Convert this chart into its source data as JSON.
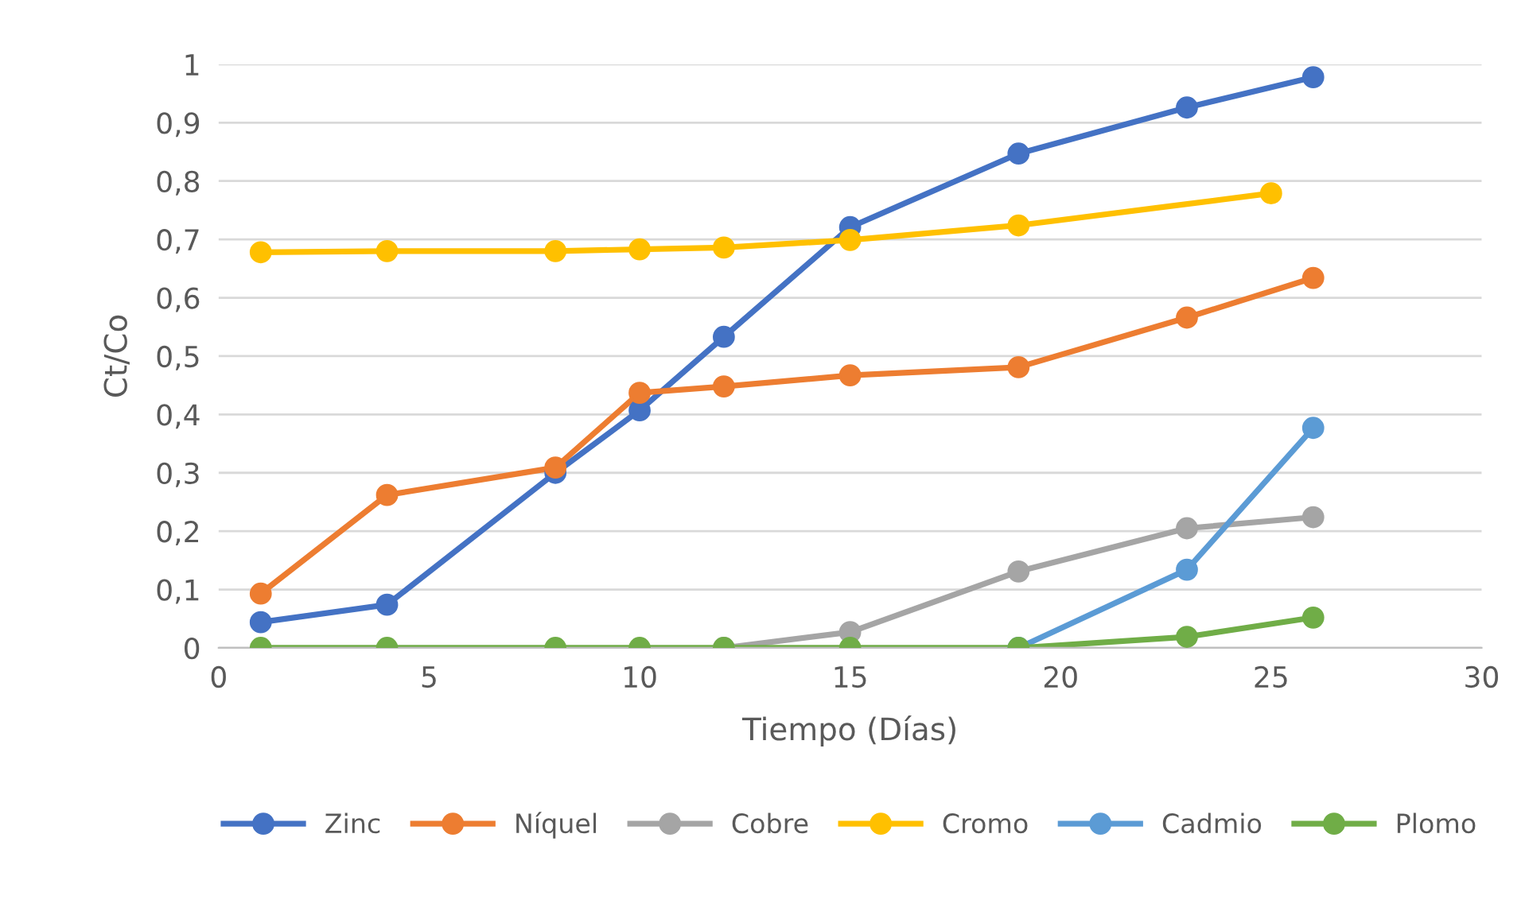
{
  "chart_data": {
    "type": "line",
    "xlabel": "Tiempo (Días)",
    "ylabel": "Ct/Co",
    "x": [
      1,
      4,
      8,
      10,
      12,
      15,
      19,
      23,
      26
    ],
    "series": [
      {
        "name": "Zinc",
        "color": "#4472c4",
        "values": [
          0.044,
          0.074,
          0.3,
          0.407,
          0.533,
          0.721,
          0.847,
          0.926,
          0.978
        ]
      },
      {
        "name": "Níquel",
        "color": "#ed7d31",
        "values": [
          0.093,
          0.262,
          0.309,
          0.437,
          0.448,
          0.467,
          0.481,
          0.566,
          0.634
        ]
      },
      {
        "name": "Cobre",
        "color": "#a5a5a5",
        "values": [
          null,
          null,
          null,
          null,
          0,
          0.027,
          0.131,
          0.205,
          0.224
        ]
      },
      {
        "name": "Cromo",
        "color": "#ffc000",
        "x": [
          1,
          4,
          8,
          10,
          12,
          15,
          19,
          25
        ],
        "values": [
          0.678,
          0.68,
          0.68,
          0.683,
          0.686,
          0.699,
          0.724,
          0.779
        ]
      },
      {
        "name": "Cadmio",
        "color": "#5b9bd5",
        "values": [
          null,
          null,
          null,
          null,
          null,
          null,
          0,
          0.134,
          0.377
        ]
      },
      {
        "name": "Plomo",
        "color": "#70ad47",
        "values": [
          0,
          0,
          0,
          0,
          0,
          0,
          0,
          0.019,
          0.052
        ]
      }
    ],
    "xlim": [
      0,
      30
    ],
    "xticks": [
      0,
      5,
      10,
      15,
      20,
      25,
      30
    ],
    "ylim": [
      0,
      1
    ],
    "yticks": [
      0,
      {
        "value": 0.1,
        "label": "0,1"
      },
      {
        "value": 0.2,
        "label": "0,2"
      },
      {
        "value": 0.3,
        "label": "0,3"
      },
      {
        "value": 0.4,
        "label": "0,4"
      },
      {
        "value": 0.5,
        "label": "0,5"
      },
      {
        "value": 0.6,
        "label": "0,6"
      },
      {
        "value": 0.7,
        "label": "0,7"
      },
      {
        "value": 0.8,
        "label": "0,8"
      },
      {
        "value": 0.9,
        "label": "0,9"
      },
      1
    ],
    "grid": "y",
    "legend": "bottom",
    "marker": "circle",
    "line_style": "solid"
  }
}
